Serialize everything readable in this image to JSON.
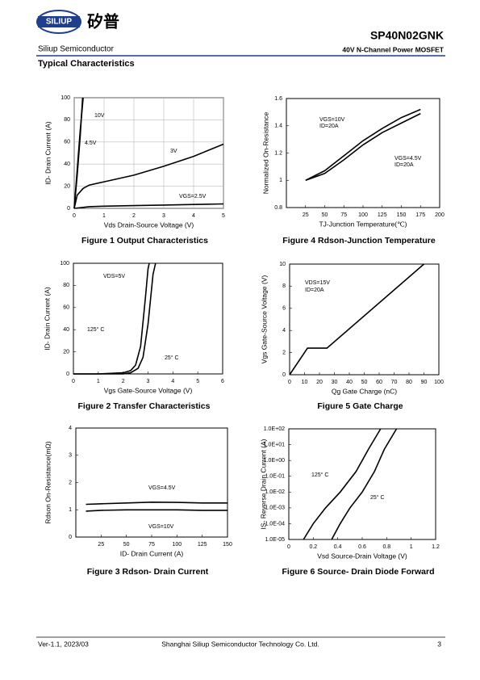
{
  "header": {
    "logo_text": "SILIUP",
    "brand_cn": "矽普",
    "company": "Siliup Semiconductor",
    "part_number": "SP40N02GNK",
    "description": "40V N-Channel Power MOSFET"
  },
  "section_title": "Typical Characteristics",
  "chart_data": [
    {
      "type": "line",
      "title": "Figure 1 Output Characteristics",
      "xlabel": "Vds Drain-Source Voltage (V)",
      "ylabel": "ID- Drain Current (A)",
      "xlim": [
        0,
        5
      ],
      "ylim": [
        0,
        100
      ],
      "xticks": [
        0,
        1,
        2,
        3,
        4,
        5
      ],
      "yticks": [
        0,
        20,
        40,
        60,
        80,
        100
      ],
      "grid": true,
      "color": "#000000",
      "series": [
        {
          "name": "10V",
          "x": [
            0,
            0.1,
            0.2,
            0.3
          ],
          "values": [
            0,
            35,
            70,
            100
          ]
        },
        {
          "name": "4.5V",
          "x": [
            0,
            0.1,
            0.2,
            0.28
          ],
          "values": [
            0,
            30,
            65,
            100
          ]
        },
        {
          "name": "3V",
          "x": [
            0,
            0.1,
            0.3,
            0.5,
            1,
            2,
            3,
            4,
            5
          ],
          "values": [
            0,
            12,
            18,
            21,
            24,
            30,
            38,
            47,
            58
          ]
        },
        {
          "name": "VGS=2.5V",
          "x": [
            0,
            0.5,
            1,
            2,
            3,
            4,
            5
          ],
          "values": [
            0,
            1.5,
            2,
            2.5,
            3,
            3.5,
            4
          ]
        }
      ]
    },
    {
      "type": "line",
      "title": "Figure 2 Transfer Characteristics",
      "xlabel": "Vgs Gate-Source Voltage (V)",
      "ylabel": "ID- Drain Current (A)",
      "xlim": [
        0,
        6
      ],
      "ylim": [
        0,
        100
      ],
      "xticks": [
        0,
        1,
        2,
        3,
        4,
        5,
        6
      ],
      "yticks": [
        0,
        20,
        40,
        60,
        80,
        100
      ],
      "grid": false,
      "color": "#000000",
      "annotations": [
        "VDS=5V"
      ],
      "series": [
        {
          "name": "125° C",
          "x": [
            0,
            1,
            2,
            2.3,
            2.5,
            2.7,
            2.9,
            3.0,
            3.05
          ],
          "values": [
            0,
            0,
            1,
            3,
            8,
            25,
            70,
            95,
            100
          ]
        },
        {
          "name": "25° C",
          "x": [
            0,
            1,
            2,
            2.3,
            2.6,
            2.8,
            3.0,
            3.2,
            3.3
          ],
          "values": [
            0,
            0,
            0,
            1,
            5,
            15,
            45,
            90,
            100
          ]
        }
      ]
    },
    {
      "type": "line",
      "title": "Figure 3 Rdson- Drain Current",
      "xlabel": "ID- Drain Current (A)",
      "ylabel": "Rdson On-Resistance(mΩ)",
      "xlim": [
        0,
        150
      ],
      "ylim": [
        0,
        4
      ],
      "xticks": [
        25,
        50,
        75,
        100,
        125,
        150
      ],
      "yticks": [
        0,
        1,
        2,
        3,
        4
      ],
      "grid": false,
      "color": "#000000",
      "series": [
        {
          "name": "VGS=4.5V",
          "x": [
            10,
            25,
            50,
            75,
            100,
            125,
            150
          ],
          "values": [
            1.2,
            1.22,
            1.25,
            1.28,
            1.27,
            1.25,
            1.25
          ]
        },
        {
          "name": "VGS=10V",
          "x": [
            10,
            25,
            50,
            75,
            100,
            125,
            150
          ],
          "values": [
            0.95,
            0.98,
            1.0,
            1.0,
            1.0,
            0.98,
            0.98
          ]
        }
      ]
    },
    {
      "type": "line",
      "title": "Figure 4 Rdson-Junction Temperature",
      "xlabel": "TJ-Junction Temperature(℃)",
      "ylabel": "Normalized On-Resistance",
      "xlim": [
        0,
        200
      ],
      "ylim": [
        0.8,
        1.6
      ],
      "xticks": [
        25,
        50,
        75,
        100,
        125,
        150,
        175,
        200
      ],
      "yticks": [
        0.8,
        1,
        1.2,
        1.4,
        1.6
      ],
      "grid": false,
      "color": "#000000",
      "series": [
        {
          "name": "VGS=10V",
          "condition": "ID=20A",
          "x": [
            25,
            50,
            75,
            100,
            125,
            150,
            175
          ],
          "values": [
            1.0,
            1.07,
            1.18,
            1.29,
            1.38,
            1.46,
            1.52
          ]
        },
        {
          "name": "VGS=4.5V",
          "condition": "ID=20A",
          "x": [
            25,
            50,
            75,
            100,
            125,
            150,
            175
          ],
          "values": [
            1.0,
            1.05,
            1.15,
            1.26,
            1.35,
            1.42,
            1.49
          ]
        }
      ]
    },
    {
      "type": "line",
      "title": "Figure 5 Gate Charge",
      "xlabel": "Qg Gate Charge (nC)",
      "ylabel": "Vgs Gate-Source Voltage (V)",
      "xlim": [
        0,
        100
      ],
      "ylim": [
        0,
        10
      ],
      "xticks": [
        0,
        10,
        20,
        30,
        40,
        50,
        60,
        70,
        80,
        90,
        100
      ],
      "yticks": [
        0,
        2,
        4,
        6,
        8,
        10
      ],
      "grid": false,
      "color": "#000000",
      "annotations": [
        "VDS=15V",
        "ID=20A"
      ],
      "series": [
        {
          "x": [
            0,
            12,
            25,
            90
          ],
          "values": [
            0,
            2.4,
            2.4,
            10
          ]
        }
      ]
    },
    {
      "type": "line",
      "title": "Figure 6 Source- Drain Diode Forward",
      "xlabel": "Vsd Source-Drain Voltage (V)",
      "ylabel": "IS- Reverse Drain Current (A)",
      "xlim": [
        0,
        1.2
      ],
      "ylim": [
        1e-05,
        100
      ],
      "log_y": true,
      "xticks": [
        0,
        0.2,
        0.4,
        0.6,
        0.8,
        1,
        1.2
      ],
      "yticks": [
        {
          "value": 100,
          "label": "1.0E+02"
        },
        {
          "value": 10,
          "label": "1.0E+01"
        },
        {
          "value": 1,
          "label": "1.0E+00"
        },
        {
          "value": 0.1,
          "label": "1.0E-01"
        },
        {
          "value": 0.01,
          "label": "1.0E-02"
        },
        {
          "value": 0.001,
          "label": "1.0E-03"
        },
        {
          "value": 0.0001,
          "label": "1.0E-04"
        },
        {
          "value": 1e-05,
          "label": "1.0E-05"
        }
      ],
      "grid": false,
      "color": "#000000",
      "series": [
        {
          "name": "125° C",
          "x": [
            0.12,
            0.2,
            0.3,
            0.42,
            0.55,
            0.65,
            0.75
          ],
          "values": [
            1e-05,
            0.0001,
            0.001,
            0.01,
            0.2,
            5,
            100
          ]
        },
        {
          "name": "25° C",
          "x": [
            0.35,
            0.42,
            0.5,
            0.6,
            0.7,
            0.78,
            0.88
          ],
          "values": [
            1e-05,
            0.0001,
            0.001,
            0.01,
            0.2,
            5,
            100
          ]
        }
      ]
    }
  ],
  "footer": {
    "version": "Ver-1.1, 2023/03",
    "company": "Shanghai Siliup Semiconductor Technology Co. Ltd.",
    "page": "3"
  }
}
